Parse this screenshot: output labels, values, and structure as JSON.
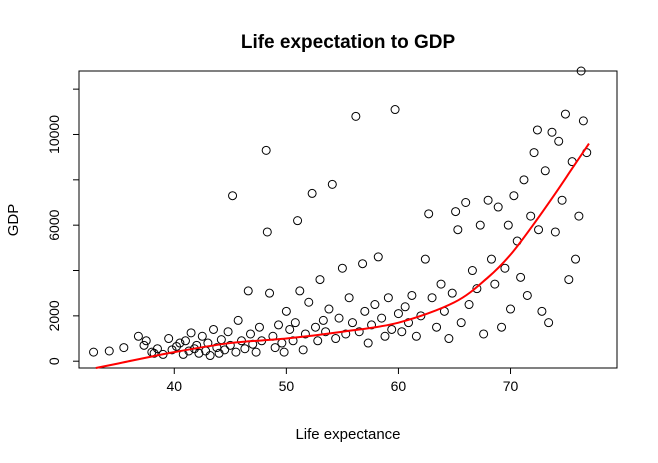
{
  "chart_data": {
    "type": "scatter",
    "title": "Life expectation to GDP",
    "xlabel": "Life expectance",
    "ylabel": "GDP",
    "xlim": [
      31.5,
      79.5
    ],
    "ylim": [
      -300,
      12800
    ],
    "xticks": [
      40,
      50,
      60,
      70
    ],
    "yticks": [
      0,
      2000,
      6000,
      10000
    ],
    "yticks_minor": [
      4000,
      8000,
      12000
    ],
    "grid": false,
    "legend": "none",
    "point_color": "#000000",
    "trend_color": "#ff0000",
    "series": [
      {
        "values": [
          [
            32.8,
            400
          ],
          [
            34.2,
            450
          ],
          [
            35.5,
            600
          ],
          [
            36.8,
            1100
          ],
          [
            37.3,
            700
          ],
          [
            37.5,
            900
          ],
          [
            38,
            400
          ],
          [
            38.2,
            350
          ],
          [
            38.5,
            550
          ],
          [
            39,
            300
          ],
          [
            39.5,
            1000
          ],
          [
            39.8,
            500
          ],
          [
            40.2,
            650
          ],
          [
            40.5,
            800
          ],
          [
            40.8,
            300
          ],
          [
            41,
            900
          ],
          [
            41.3,
            450
          ],
          [
            41.5,
            1250
          ],
          [
            41.8,
            550
          ],
          [
            42,
            700
          ],
          [
            42.2,
            350
          ],
          [
            42.5,
            1100
          ],
          [
            42.8,
            450
          ],
          [
            43,
            800
          ],
          [
            43.2,
            250
          ],
          [
            43.5,
            1400
          ],
          [
            43.8,
            600
          ],
          [
            44,
            350
          ],
          [
            44.2,
            950
          ],
          [
            44.5,
            500
          ],
          [
            44.8,
            1300
          ],
          [
            45,
            700
          ],
          [
            45.2,
            7300
          ],
          [
            45.5,
            400
          ],
          [
            45.7,
            1800
          ],
          [
            46,
            900
          ],
          [
            46.3,
            550
          ],
          [
            46.6,
            3100
          ],
          [
            46.8,
            1200
          ],
          [
            47,
            750
          ],
          [
            47.3,
            400
          ],
          [
            47.6,
            1500
          ],
          [
            47.8,
            900
          ],
          [
            48.2,
            9300
          ],
          [
            48.3,
            5700
          ],
          [
            48.5,
            3000
          ],
          [
            48.8,
            1100
          ],
          [
            49,
            600
          ],
          [
            49.3,
            1600
          ],
          [
            49.6,
            800
          ],
          [
            49.8,
            400
          ],
          [
            50,
            2200
          ],
          [
            50.3,
            1400
          ],
          [
            50.6,
            900
          ],
          [
            50.8,
            1700
          ],
          [
            51,
            6200
          ],
          [
            51.2,
            3100
          ],
          [
            51.5,
            500
          ],
          [
            51.7,
            1200
          ],
          [
            52,
            2600
          ],
          [
            52.3,
            7400
          ],
          [
            52.6,
            1500
          ],
          [
            52.8,
            900
          ],
          [
            53,
            3600
          ],
          [
            53.3,
            1800
          ],
          [
            53.5,
            1300
          ],
          [
            53.8,
            2300
          ],
          [
            54.1,
            7800
          ],
          [
            54.4,
            1000
          ],
          [
            54.7,
            1900
          ],
          [
            55,
            4100
          ],
          [
            55.3,
            1200
          ],
          [
            55.6,
            2800
          ],
          [
            55.9,
            1700
          ],
          [
            56.2,
            10800
          ],
          [
            56.5,
            1300
          ],
          [
            56.8,
            4300
          ],
          [
            57,
            2200
          ],
          [
            57.3,
            800
          ],
          [
            57.6,
            1600
          ],
          [
            57.9,
            2500
          ],
          [
            58.2,
            4600
          ],
          [
            58.5,
            1900
          ],
          [
            58.8,
            1100
          ],
          [
            59.1,
            2800
          ],
          [
            59.4,
            1400
          ],
          [
            59.7,
            11100
          ],
          [
            60,
            2100
          ],
          [
            60.3,
            1300
          ],
          [
            60.6,
            2400
          ],
          [
            60.9,
            1700
          ],
          [
            61.2,
            2900
          ],
          [
            61.6,
            1100
          ],
          [
            62,
            2000
          ],
          [
            62.4,
            4500
          ],
          [
            62.7,
            6500
          ],
          [
            63,
            2800
          ],
          [
            63.4,
            1500
          ],
          [
            63.8,
            3400
          ],
          [
            64.1,
            2200
          ],
          [
            64.5,
            1000
          ],
          [
            64.8,
            3000
          ],
          [
            65.1,
            6600
          ],
          [
            65.3,
            5800
          ],
          [
            65.6,
            1700
          ],
          [
            66,
            7000
          ],
          [
            66.3,
            2500
          ],
          [
            66.6,
            4000
          ],
          [
            67,
            3200
          ],
          [
            67.3,
            6000
          ],
          [
            67.6,
            1200
          ],
          [
            68,
            7100
          ],
          [
            68.3,
            4500
          ],
          [
            68.6,
            3400
          ],
          [
            68.9,
            6800
          ],
          [
            69.2,
            1500
          ],
          [
            69.5,
            4100
          ],
          [
            69.8,
            6000
          ],
          [
            70,
            2300
          ],
          [
            70.3,
            7300
          ],
          [
            70.6,
            5300
          ],
          [
            70.9,
            3700
          ],
          [
            71.2,
            8000
          ],
          [
            71.5,
            2900
          ],
          [
            71.8,
            6400
          ],
          [
            72.1,
            9200
          ],
          [
            72.4,
            10200
          ],
          [
            72.5,
            5800
          ],
          [
            72.8,
            2200
          ],
          [
            73.1,
            8400
          ],
          [
            73.4,
            1700
          ],
          [
            73.7,
            10100
          ],
          [
            74,
            5700
          ],
          [
            74.3,
            9700
          ],
          [
            74.6,
            7100
          ],
          [
            74.9,
            10900
          ],
          [
            75.2,
            3600
          ],
          [
            75.5,
            8800
          ],
          [
            75.8,
            4500
          ],
          [
            76.1,
            6400
          ],
          [
            76.3,
            12800
          ],
          [
            76.5,
            10600
          ],
          [
            76.8,
            9200
          ]
        ]
      }
    ],
    "trend": {
      "type": "smooth curve",
      "values": [
        [
          33,
          -300
        ],
        [
          35,
          -100
        ],
        [
          40,
          400
        ],
        [
          45,
          800
        ],
        [
          50,
          1000
        ],
        [
          55,
          1300
        ],
        [
          60,
          1700
        ],
        [
          65,
          2600
        ],
        [
          68,
          3700
        ],
        [
          70,
          4700
        ],
        [
          72,
          6000
        ],
        [
          74,
          7400
        ],
        [
          75.5,
          8500
        ],
        [
          77,
          9600
        ]
      ]
    }
  }
}
